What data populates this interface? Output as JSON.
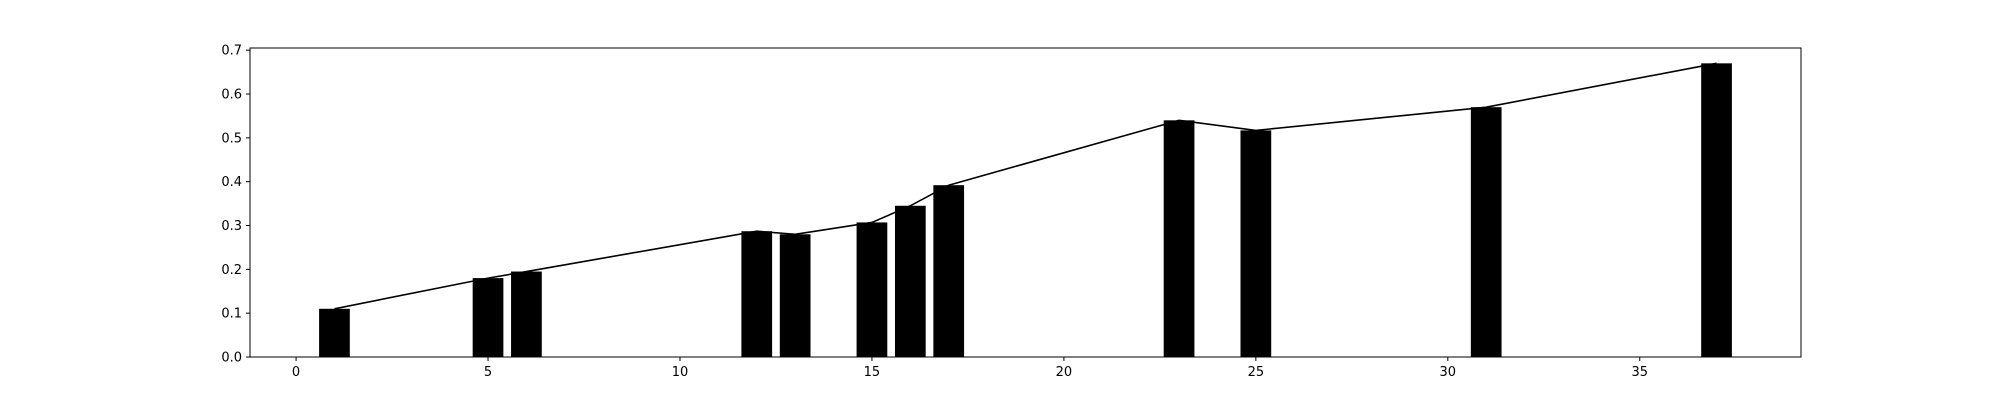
{
  "chart_data": {
    "type": "bar",
    "x": [
      1,
      5,
      6,
      12,
      13,
      15,
      16,
      17,
      23,
      25,
      31,
      37
    ],
    "values": [
      0.11,
      0.18,
      0.195,
      0.287,
      0.28,
      0.307,
      0.345,
      0.392,
      0.54,
      0.517,
      0.57,
      0.67
    ],
    "line_overlay": true,
    "xlim": [
      -1.2,
      39.2
    ],
    "ylim": [
      0.0,
      0.705
    ],
    "x_ticks": [
      0,
      5,
      10,
      15,
      20,
      25,
      30,
      35
    ],
    "x_tick_labels": [
      "0",
      "5",
      "10",
      "15",
      "20",
      "25",
      "30",
      "35"
    ],
    "y_ticks": [
      0.0,
      0.1,
      0.2,
      0.3,
      0.4,
      0.5,
      0.6,
      0.7
    ],
    "y_tick_labels": [
      "0.0",
      "0.1",
      "0.2",
      "0.3",
      "0.4",
      "0.5",
      "0.6",
      "0.7"
    ],
    "bar_color": "#000000",
    "line_color": "#000000",
    "grid": false,
    "title": "",
    "xlabel": "",
    "ylabel": ""
  }
}
